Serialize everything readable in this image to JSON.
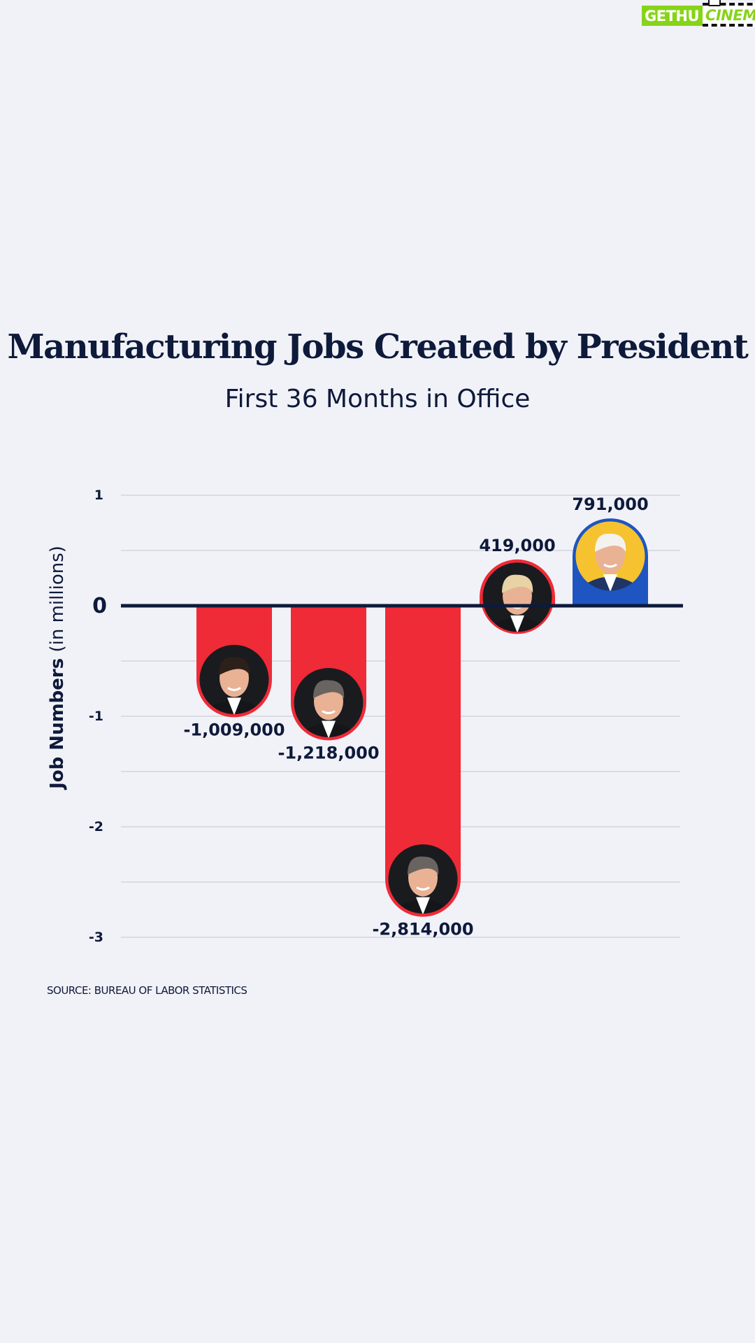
{
  "watermark": {
    "part1": "GETHU",
    "part2": "CINEMA"
  },
  "title": "Manufacturing Jobs Created by President",
  "subtitle": "First 36 Months in Office",
  "ylabel_bold": "Job Numbers",
  "ylabel_rest": " (in millions)",
  "source": "SOURCE: BUREAU OF LABOR STATISTICS",
  "colors": {
    "negative": "#ef2b37",
    "positive_2": "#1f55c0",
    "axis": "#0e1a3a",
    "grid": "#d4d5dc"
  },
  "chart_data": {
    "type": "bar",
    "title": "Manufacturing Jobs Created by President",
    "subtitle": "First 36 Months in Office",
    "xlabel": "",
    "ylabel": "Job Numbers (in millions)",
    "ylim": [
      -3,
      1
    ],
    "yticks": [
      1,
      0,
      -1,
      -2,
      -3
    ],
    "ytick_labels": [
      "1",
      "0",
      "-1",
      "-2",
      "-3"
    ],
    "grid": true,
    "values": [
      -1009000,
      -1218000,
      -2814000,
      419000,
      791000
    ],
    "value_labels": [
      "-1,009,000",
      "-1,218,000",
      "-2,814,000",
      "419,000",
      "791,000"
    ],
    "bar_colors": [
      "#ef2b37",
      "#ef2b37",
      "#ef2b37",
      "#ef2b37",
      "#1f55c0"
    ],
    "portrait_icons": [
      "portrait-1-icon",
      "portrait-2-icon",
      "portrait-3-icon",
      "portrait-4-icon",
      "portrait-5-icon"
    ]
  }
}
